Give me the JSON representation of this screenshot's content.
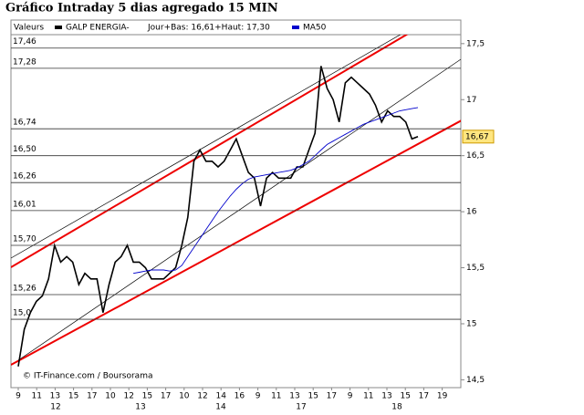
{
  "chart_data": {
    "type": "line",
    "title": "Gráfico Intraday 5 dias agregado 15 MIN",
    "legend_label": "Valeurs",
    "session_info": "Jour+Bas: 16,61+Haut: 17,30",
    "source": "© IT-Finance.com / Boursorama",
    "series": [
      {
        "name": "GALP ENERGIA-",
        "color": "#000000",
        "values": [
          14.62,
          14.95,
          15.1,
          15.2,
          15.25,
          15.4,
          15.7,
          15.55,
          15.6,
          15.55,
          15.35,
          15.45,
          15.4,
          15.4,
          15.1,
          15.35,
          15.55,
          15.6,
          15.7,
          15.55,
          15.55,
          15.5,
          15.4,
          15.4,
          15.4,
          15.45,
          15.5,
          15.7,
          15.95,
          16.45,
          16.55,
          16.45,
          16.45,
          16.4,
          16.45,
          16.55,
          16.65,
          16.5,
          16.35,
          16.3,
          16.05,
          16.3,
          16.35,
          16.3,
          16.3,
          16.3,
          16.4,
          16.4,
          16.55,
          16.7,
          17.3,
          17.1,
          17.0,
          16.8,
          17.15,
          17.2,
          17.15,
          17.1,
          17.05,
          16.95,
          16.8,
          16.9,
          16.85,
          16.85,
          16.8,
          16.65,
          16.67
        ]
      },
      {
        "name": "MA50",
        "color": "#0000cc",
        "values": [
          null,
          null,
          null,
          null,
          null,
          null,
          null,
          null,
          null,
          null,
          null,
          null,
          null,
          null,
          null,
          null,
          null,
          null,
          null,
          15.45,
          15.46,
          15.47,
          15.48,
          15.48,
          15.48,
          15.47,
          15.48,
          15.52,
          15.6,
          15.68,
          15.76,
          15.84,
          15.92,
          16.0,
          16.07,
          16.14,
          16.2,
          16.25,
          16.29,
          16.31,
          16.32,
          16.33,
          16.34,
          16.35,
          16.36,
          16.37,
          16.39,
          16.42,
          16.45,
          16.5,
          16.55,
          16.6,
          16.63,
          16.66,
          16.69,
          16.72,
          16.75,
          16.78,
          16.8,
          16.82,
          16.84,
          16.86,
          16.88,
          16.9,
          16.91,
          16.92,
          16.93
        ]
      }
    ],
    "hour_labels": [
      "9",
      "11",
      "13",
      "15",
      "17",
      "10",
      "12",
      "15",
      "17",
      "10",
      "12",
      "14",
      "16",
      "9",
      "11",
      "13",
      "15",
      "17",
      "9",
      "11",
      "13",
      "15",
      "17",
      "19"
    ],
    "day_labels": [
      "12",
      "13",
      "14",
      "17",
      "18"
    ],
    "ylim": [
      14.43,
      17.58
    ],
    "yticks": [
      {
        "value": 14.5,
        "label": "14,5"
      },
      15,
      {
        "value": 15.5,
        "label": "15,5"
      },
      16,
      {
        "value": 16.5,
        "label": "16,5"
      },
      17,
      {
        "value": 17.5,
        "label": "17,5"
      }
    ],
    "levels": [
      {
        "value": 17.46,
        "label": "17,46"
      },
      {
        "value": 17.28,
        "label": "17,28"
      },
      {
        "value": 16.74,
        "label": "16,74"
      },
      {
        "value": 16.5,
        "label": "16,50"
      },
      {
        "value": 16.26,
        "label": "16,26"
      },
      {
        "value": 16.01,
        "label": "16,01"
      },
      {
        "value": 15.7,
        "label": "15,70"
      },
      {
        "value": 15.26,
        "label": "15,26"
      },
      {
        "value": 15.04,
        "label": "15,0"
      }
    ],
    "last_price": {
      "value": 16.67,
      "label": "16,67"
    }
  }
}
